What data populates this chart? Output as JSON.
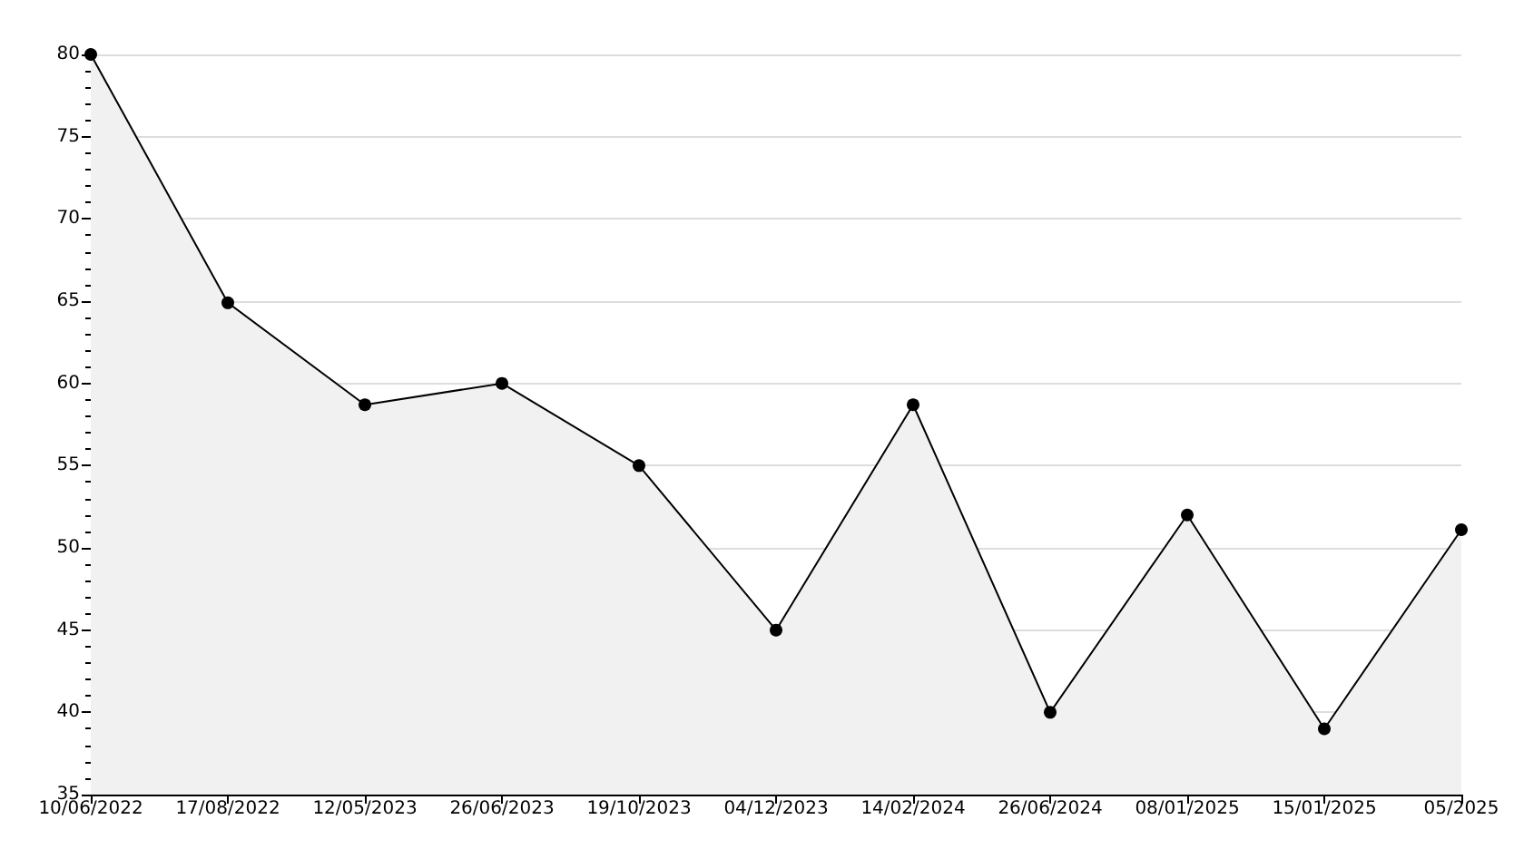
{
  "chart_data": {
    "type": "area",
    "categories": [
      "10/06/2022",
      "17/08/2022",
      "12/05/2023",
      "26/06/2023",
      "19/10/2023",
      "04/12/2023",
      "14/02/2024",
      "26/06/2024",
      "08/01/2025",
      "15/01/2025",
      "05/2025"
    ],
    "series": [
      {
        "color": "#000000",
        "values": [
          80,
          64.9,
          58.7,
          60,
          55,
          45,
          58.7,
          40,
          52,
          39,
          51.1
        ]
      }
    ],
    "ylim": [
      35,
      80
    ],
    "yticks": [
      35,
      40,
      45,
      50,
      55,
      60,
      65,
      70,
      75,
      80
    ],
    "grid": "y",
    "marker": "circle",
    "line_style": "solid"
  }
}
